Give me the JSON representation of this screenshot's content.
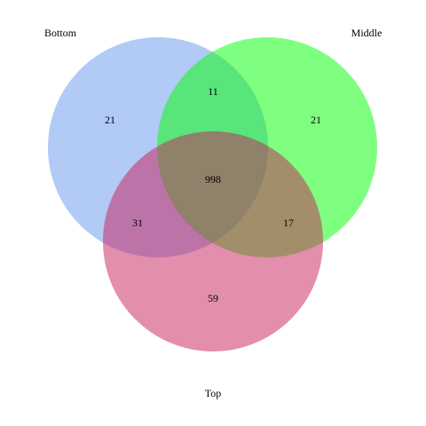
{
  "venn": {
    "sets": [
      {
        "id": "bottom",
        "name": "Bottom",
        "color": "#6495ED"
      },
      {
        "id": "middle",
        "name": "Middle",
        "color": "#00FF00"
      },
      {
        "id": "top",
        "name": "Top",
        "color": "#C71E5A"
      }
    ],
    "regions": [
      {
        "id": "bottom-only",
        "sets": [
          "bottom"
        ],
        "count": "21"
      },
      {
        "id": "middle-only",
        "sets": [
          "middle"
        ],
        "count": "21"
      },
      {
        "id": "top-only",
        "sets": [
          "top"
        ],
        "count": "59"
      },
      {
        "id": "bottom-middle",
        "sets": [
          "bottom",
          "middle"
        ],
        "count": "11"
      },
      {
        "id": "bottom-top",
        "sets": [
          "bottom",
          "top"
        ],
        "count": "31"
      },
      {
        "id": "middle-top",
        "sets": [
          "middle",
          "top"
        ],
        "count": "17"
      },
      {
        "id": "all",
        "sets": [
          "bottom",
          "middle",
          "top"
        ],
        "count": "998"
      }
    ]
  }
}
